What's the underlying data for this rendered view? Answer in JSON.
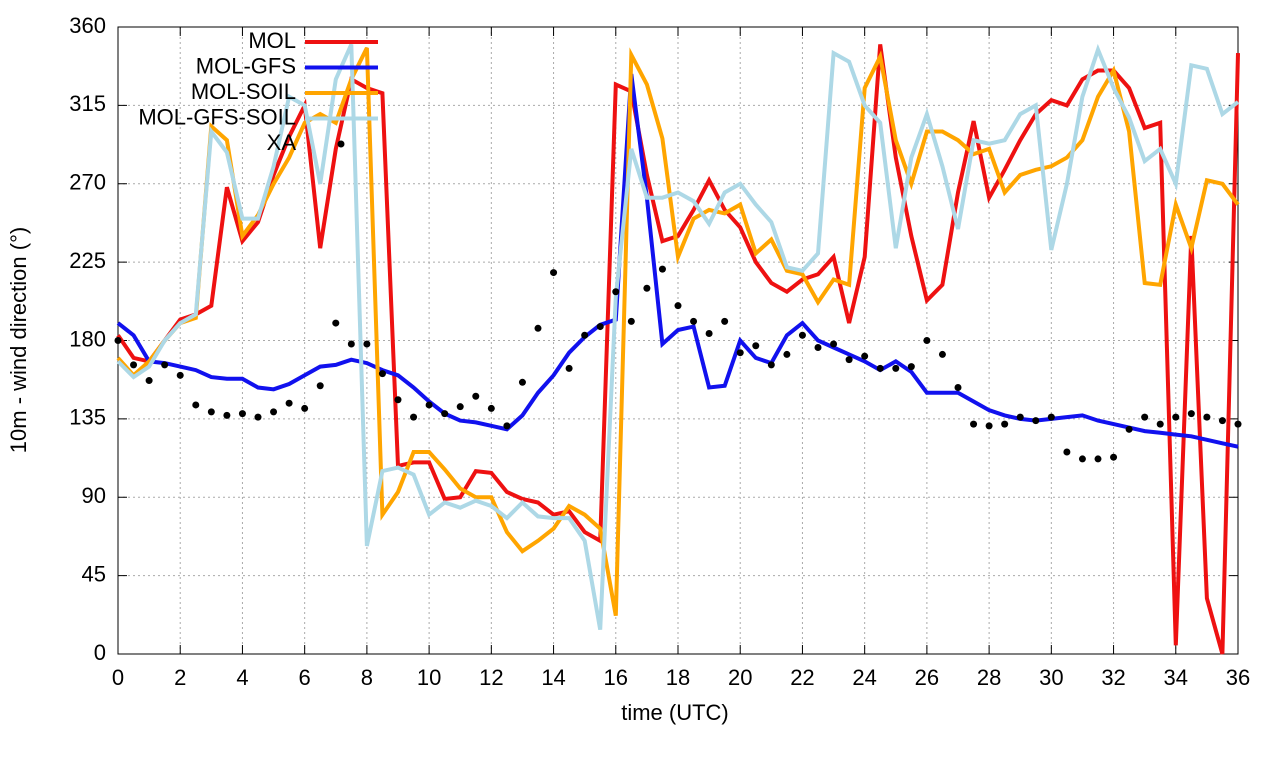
{
  "chart_data": {
    "type": "line",
    "xlabel": "time (UTC)",
    "ylabel": "10m - wind direction (°)",
    "x": [
      0,
      0.5,
      1,
      1.5,
      2,
      2.5,
      3,
      3.5,
      4,
      4.5,
      5,
      5.5,
      6,
      6.5,
      7,
      7.5,
      8,
      8.5,
      9,
      9.5,
      10,
      10.5,
      11,
      11.5,
      12,
      12.5,
      13,
      13.5,
      14,
      14.5,
      15,
      15.5,
      16,
      16.5,
      17,
      17.5,
      18,
      18.5,
      19,
      19.5,
      20,
      20.5,
      21,
      21.5,
      22,
      22.5,
      23,
      23.5,
      24,
      24.5,
      25,
      25.5,
      26,
      26.5,
      27,
      27.5,
      28,
      28.5,
      29,
      29.5,
      30,
      30.5,
      31,
      31.5,
      32,
      32.5,
      33,
      33.5,
      34,
      34.5,
      35,
      35.5,
      36
    ],
    "xlim": [
      0,
      36
    ],
    "xticks": [
      0,
      2,
      4,
      6,
      8,
      10,
      12,
      14,
      16,
      18,
      20,
      22,
      24,
      26,
      28,
      30,
      32,
      34,
      36
    ],
    "ylim": [
      0,
      360
    ],
    "yticks": [
      0,
      45,
      90,
      135,
      180,
      225,
      270,
      315,
      360
    ],
    "grid": true,
    "legend": "top-left",
    "series": [
      {
        "name": "MOL",
        "color": "#ee1111",
        "style": "line",
        "values": [
          183,
          170,
          168,
          180,
          192,
          195,
          200,
          268,
          237,
          248,
          275,
          297,
          315,
          233,
          290,
          330,
          325,
          322,
          108,
          110,
          110,
          89,
          90,
          105,
          104,
          93,
          89,
          87,
          80,
          82,
          70,
          65,
          327,
          323,
          275,
          237,
          240,
          255,
          272,
          255,
          245,
          225,
          213,
          208,
          215,
          218,
          228,
          190,
          228,
          350,
          285,
          240,
          203,
          212,
          265,
          306,
          262,
          278,
          295,
          310,
          318,
          315,
          330,
          335,
          335,
          325,
          302,
          305,
          5,
          240,
          32,
          0,
          345
        ]
      },
      {
        "name": "MOL-GFS",
        "color": "#1111ee",
        "style": "line",
        "values": [
          190,
          183,
          168,
          167,
          165,
          163,
          159,
          158,
          158,
          153,
          152,
          155,
          160,
          165,
          166,
          169,
          167,
          163,
          160,
          153,
          145,
          138,
          134,
          133,
          131,
          129,
          137,
          150,
          160,
          173,
          182,
          189,
          192,
          333,
          262,
          178,
          186,
          188,
          153,
          154,
          180,
          170,
          167,
          183,
          190,
          180,
          176,
          172,
          168,
          163,
          168,
          162,
          150,
          150,
          150,
          145,
          140,
          137,
          135,
          134,
          135,
          136,
          137,
          134,
          132,
          130,
          128,
          127,
          126,
          125,
          123,
          121,
          119
        ]
      },
      {
        "name": "MOL-SOIL",
        "color": "#ffa500",
        "style": "line",
        "values": [
          170,
          160,
          168,
          180,
          190,
          193,
          303,
          295,
          240,
          252,
          270,
          285,
          305,
          310,
          305,
          330,
          348,
          80,
          93,
          116,
          116,
          106,
          95,
          90,
          90,
          70,
          59,
          65,
          72,
          85,
          80,
          72,
          22,
          344,
          327,
          296,
          228,
          250,
          255,
          253,
          258,
          230,
          238,
          220,
          218,
          202,
          215,
          212,
          325,
          343,
          295,
          270,
          300,
          300,
          295,
          287,
          290,
          265,
          275,
          278,
          280,
          285,
          295,
          320,
          335,
          300,
          213,
          212,
          258,
          233,
          272,
          270,
          258
        ]
      },
      {
        "name": "MOL-GFS-SOIL",
        "color": "#add8e6",
        "style": "line",
        "values": [
          168,
          159,
          165,
          180,
          190,
          195,
          300,
          288,
          250,
          250,
          280,
          320,
          315,
          270,
          330,
          350,
          62,
          105,
          107,
          103,
          80,
          87,
          84,
          88,
          85,
          78,
          87,
          79,
          78,
          78,
          65,
          14,
          205,
          290,
          262,
          262,
          265,
          260,
          247,
          265,
          270,
          258,
          248,
          222,
          220,
          230,
          345,
          340,
          315,
          305,
          233,
          285,
          310,
          280,
          244,
          295,
          293,
          295,
          310,
          315,
          232,
          270,
          320,
          347,
          325,
          308,
          283,
          290,
          270,
          338,
          336,
          310,
          317
        ]
      },
      {
        "name": "XA",
        "color": "#000000",
        "style": "points",
        "values": [
          180,
          166,
          157,
          166,
          160,
          143,
          139,
          137,
          138,
          136,
          139,
          144,
          141,
          154,
          190,
          178,
          178,
          161,
          146,
          136,
          143,
          138,
          142,
          148,
          141,
          131,
          156,
          187,
          219,
          164,
          183,
          188,
          208,
          191,
          210,
          221,
          200,
          191,
          184,
          191,
          173,
          177,
          166,
          172,
          183,
          176,
          178,
          169,
          171,
          164,
          164,
          165,
          180,
          172,
          153,
          132,
          131,
          132,
          136,
          134,
          136,
          116,
          112,
          112,
          113,
          129,
          136,
          132,
          136,
          138,
          136,
          134,
          132
        ]
      }
    ]
  }
}
